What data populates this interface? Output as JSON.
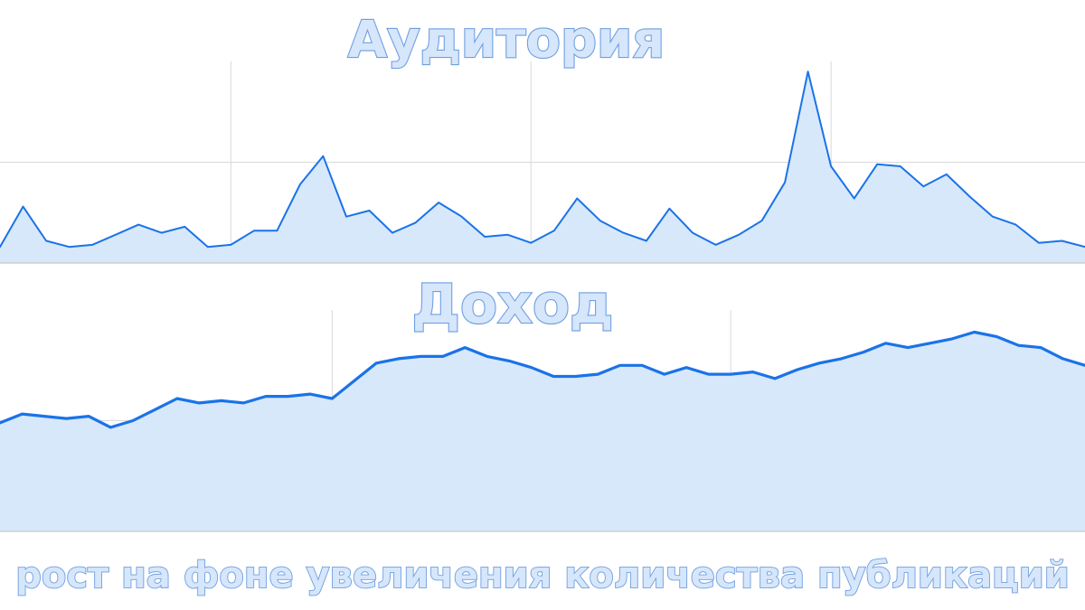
{
  "colors": {
    "line": "#1a73e8",
    "area": "#d8e8fb",
    "grid": "#d9d9d9",
    "baseline": "#c8c8c8"
  },
  "caption": "рост на фоне увеличения количества публикаций",
  "chart_data": [
    {
      "type": "area",
      "title": "Аудитория",
      "ylim": [
        0,
        100
      ],
      "grid": true,
      "x": [
        0,
        1,
        2,
        3,
        4,
        5,
        6,
        7,
        8,
        9,
        10,
        11,
        12,
        13,
        14,
        15,
        16,
        17,
        18,
        19,
        20,
        21,
        22,
        23,
        24,
        25,
        26,
        27,
        28,
        29,
        30,
        31,
        32,
        33,
        34,
        35,
        36,
        37,
        38,
        39,
        40,
        41,
        42,
        43,
        44,
        45,
        46,
        47
      ],
      "values": [
        8,
        28,
        11,
        8,
        9,
        14,
        19,
        15,
        18,
        8,
        9,
        16,
        16,
        39,
        53,
        23,
        26,
        15,
        20,
        30,
        23,
        13,
        14,
        10,
        16,
        32,
        21,
        15,
        11,
        27,
        15,
        9,
        14,
        21,
        40,
        95,
        48,
        32,
        49,
        48,
        38,
        44,
        33,
        23,
        19,
        10,
        11,
        8
      ],
      "vertical_grid_at": [
        10,
        23,
        36
      ]
    },
    {
      "type": "area",
      "title": "Доход",
      "ylim": [
        0,
        100
      ],
      "grid": true,
      "x": [
        0,
        1,
        2,
        3,
        4,
        5,
        6,
        7,
        8,
        9,
        10,
        11,
        12,
        13,
        14,
        15,
        16,
        17,
        18,
        19,
        20,
        21,
        22,
        23,
        24,
        25,
        26,
        27,
        28,
        29,
        30,
        31,
        32,
        33,
        34,
        35,
        36,
        37,
        38,
        39,
        40,
        41,
        42,
        43,
        44,
        45,
        46,
        47,
        48,
        49
      ],
      "values": [
        49,
        53,
        52,
        51,
        52,
        47,
        50,
        55,
        60,
        58,
        59,
        58,
        61,
        61,
        62,
        60,
        68,
        76,
        78,
        79,
        79,
        83,
        79,
        77,
        74,
        70,
        70,
        71,
        75,
        75,
        71,
        74,
        71,
        71,
        72,
        69,
        73,
        76,
        78,
        81,
        85,
        83,
        85,
        87,
        90,
        88,
        84,
        83,
        78,
        75
      ],
      "vertical_grid_at": [
        15,
        33
      ]
    }
  ]
}
